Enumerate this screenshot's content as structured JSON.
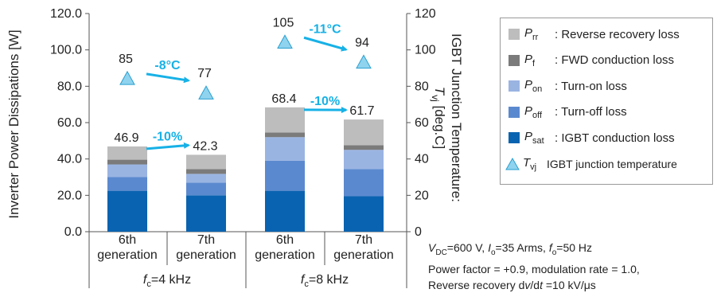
{
  "chart_data": {
    "type": "bar",
    "subtype": "stacked-bar-with-secondary-axis",
    "groups": [
      {
        "label_italic": "f",
        "label_sub": "c",
        "label_rest": "=4 kHz",
        "bars": [
          {
            "label_line1": "6th",
            "label_line2": "generation"
          },
          {
            "label_line1": "7th",
            "label_line2": "generation"
          }
        ]
      },
      {
        "label_italic": "f",
        "label_sub": "c",
        "label_rest": "=8 kHz",
        "bars": [
          {
            "label_line1": "6th",
            "label_line2": "generation"
          },
          {
            "label_line1": "7th",
            "label_line2": "generation"
          }
        ]
      }
    ],
    "series": [
      {
        "symbol": "P",
        "sub": "sat",
        "desc": ": IGBT conduction loss",
        "color": "#0a63b0",
        "values": [
          22.5,
          20.0,
          22.5,
          19.5
        ]
      },
      {
        "symbol": "P",
        "sub": "off",
        "desc": ": Turn-off loss",
        "color": "#5b89cf",
        "values": [
          7.5,
          7.0,
          16.5,
          15.0
        ]
      },
      {
        "symbol": "P",
        "sub": "on",
        "desc": ": Turn-on loss",
        "color": "#9ab4e2",
        "values": [
          7.0,
          4.8,
          13.0,
          10.5
        ]
      },
      {
        "symbol": "P",
        "sub": "f",
        "desc": ": FWD conduction loss",
        "color": "#7b7b7b",
        "values": [
          2.6,
          2.6,
          2.6,
          2.6
        ]
      },
      {
        "symbol": "P",
        "sub": "rr",
        "desc": ": Reverse recovery loss",
        "color": "#bdbdbd",
        "values": [
          7.3,
          7.9,
          13.8,
          14.1
        ]
      }
    ],
    "totals": [
      46.9,
      42.3,
      68.4,
      61.7
    ],
    "total_labels": [
      "46.9",
      "42.3",
      "68.4",
      "61.7"
    ],
    "tj": {
      "symbol": "T",
      "sub": "vj",
      "desc": "IGBT junction temperature",
      "color": "#8fd3ee",
      "values": [
        85,
        77,
        105,
        94
      ],
      "labels": [
        "85",
        "77",
        "105",
        "94"
      ]
    },
    "improvements": [
      {
        "text": "-10%",
        "from": 0,
        "to": 1,
        "kind": "loss"
      },
      {
        "text": "-8°C",
        "from": 0,
        "to": 1,
        "kind": "temp"
      },
      {
        "text": "-10%",
        "from": 2,
        "to": 3,
        "kind": "loss"
      },
      {
        "text": "-11°C",
        "from": 2,
        "to": 3,
        "kind": "temp"
      }
    ],
    "accent_color": "#17b1e6",
    "y_left": {
      "label": "Inverter Power Dissipations [W]",
      "min": 0,
      "max": 120,
      "ticks": [
        "0.0",
        "20.0",
        "40.0",
        "60.0",
        "80.0",
        "100.0",
        "120.0"
      ]
    },
    "y_right": {
      "label_line1": "IGBT Junction Temperature:",
      "label_sym": "T",
      "label_sub": "vj",
      "label_unit": " [deg.C]",
      "min": 0,
      "max": 120,
      "ticks": [
        "0",
        "20",
        "40",
        "60",
        "80",
        "100",
        "120"
      ]
    },
    "grid": false,
    "legend_position": "right"
  },
  "conditions": {
    "line1": {
      "v": "V",
      "v_sub": "DC",
      "v_rest": "=600 V, ",
      "i": "I",
      "i_sub": "o",
      "i_rest": "=35 Arms, ",
      "f": "f",
      "f_sub": "o",
      "f_rest": "=50 Hz"
    },
    "line2": "Power factor = +0.9, modulation rate = 1.0,",
    "line3": {
      "pre": "Reverse recovery d",
      "v": "v",
      "slash": "/d",
      "t": "t",
      "post": " =10 kV/μs"
    }
  }
}
